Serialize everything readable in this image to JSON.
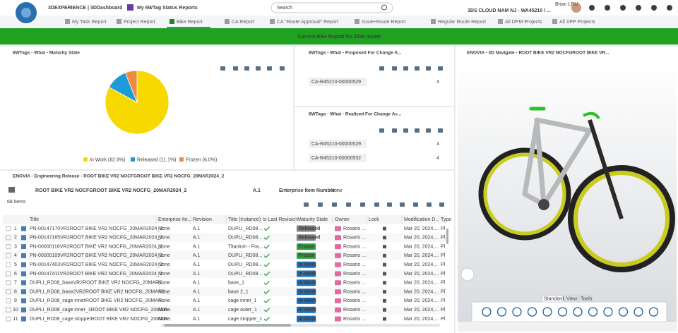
{
  "topbar": {
    "brand": "3DEXPERIENCE | 3DDashboard",
    "dashboard": "My 6WTag Status Reports",
    "search": "Search",
    "user": "Brian LRU",
    "tenant": "3DS CLOUD NAM NJ - WA45210 / ..."
  },
  "tabs": [
    "My Task Report",
    "Project Report",
    "Bike Report",
    "CA Report",
    "CA \"Route Approval\" Report",
    "Issue+Route Report",
    "Regular Route Report",
    "All DPM Projects",
    "All XPP Projects"
  ],
  "active_tab": 2,
  "banner": "Current Bike Report for 2026 model",
  "maturity_widget": {
    "title": "6WTags - What - Maturity State",
    "chart_data": {
      "type": "pie",
      "categories": [
        "In Work",
        "Released",
        "Frozen"
      ],
      "values": [
        82.9,
        11.1,
        6.0
      ],
      "legend_labels": [
        "In Work (82.9%)",
        "Released (11.1%)",
        "Frozen (6.0%)"
      ],
      "colors": [
        "#f7d900",
        "#1d9bd8",
        "#f08a3c"
      ]
    }
  },
  "proposed_widget": {
    "title": "6WTags - What - Proposed For Change A...",
    "items": [
      {
        "name": "CA-R45210-00000529",
        "count": 4
      }
    ]
  },
  "realized_widget": {
    "title": "6WTags - What - Realized For Change Ac...",
    "items": [
      {
        "name": "CA-R45210-00000529",
        "count": 4
      },
      {
        "name": "CA-R45210-00000532",
        "count": 4
      }
    ]
  },
  "navigate_widget": {
    "title": "ENOVIA - 3D Navigate - ROOT BIKE VR2 NOCFGROOT BIKE VR...",
    "toolbar_tabs": [
      "Standard",
      "View",
      "Tools"
    ]
  },
  "release_widget": {
    "title": "ENOVIA - Engineering Release - ROOT BIKE VR2 NOCFGROOT BIKE VR2 NOCFG_20MAR2024_2",
    "object": "ROOT BIKE VR2 NOCFGROOT BIKE VR2 NOCFG_20MAR2024_2",
    "revision": "A.1",
    "ein_label": "Enterprise Item Number :",
    "ein": "None",
    "count": "68 items",
    "columns": [
      "Title",
      "Enterprise Ite...",
      "Revision",
      "Title (Instance)",
      "Is Last Revision",
      "Maturity State",
      "Owner",
      "Lock",
      "Modification D...",
      "Type"
    ],
    "rows": [
      [
        1,
        "PN-00147170VR2ROOT BIKE VR2 NOCFG_20MAR2024_2",
        "None",
        "A.1",
        "DUPLI_RD08...",
        "Released",
        "Rosario ...",
        "Mar 20, 2024,...",
        "Pl"
      ],
      [
        2,
        "PN-00147165VR2ROOT BIKE VR2 NOCFG_20MAR2024_2",
        "None",
        "A.1",
        "DUPLI_RD08...",
        "Released",
        "Rosario ...",
        "Mar 20, 2024,...",
        "Pl"
      ],
      [
        3,
        "PN-00000116VR2ROOT BIKE VR2 NOCFG_20MAR2024_2",
        "None",
        "A.1",
        "Titanium - Fra...",
        "Frozen",
        "Rosario ...",
        "Mar 20, 2024,...",
        "Pl"
      ],
      [
        4,
        "PN-00000109VR2ROOT BIKE VR2 NOCFG_20MAR2024_2",
        "None",
        "A.1",
        "DUPLI_RD08...",
        "Frozen",
        "Rosario ...",
        "Mar 20, 2024,...",
        "Pl"
      ],
      [
        5,
        "PN-00147403VR2ROOT BIKE VR2 NOCFG_20MAR2024_2",
        "None",
        "A.1",
        "DUPLI_RD08...",
        "In Work",
        "Rosario ...",
        "Mar 20, 2024,...",
        "Pl"
      ],
      [
        6,
        "PN-00147411VR2ROOT BIKE VR2 NOCFG_20MAR2024_2",
        "None",
        "A.1",
        "DUPLI_RD08...",
        "In Work",
        "Rosario ...",
        "Mar 20, 2024,...",
        "Pl"
      ],
      [
        7,
        "DUPLI_RD08_baseVR2ROOT BIKE VR2 NOCFG_20MAR2...",
        "None",
        "A.1",
        "base_1",
        "In Work",
        "Rosario ...",
        "Mar 20, 2024,...",
        "Pl"
      ],
      [
        8,
        "DUPLI_RD08_base2VR2ROOT BIKE VR2 NOCFG_20MAR2...",
        "None",
        "A.1",
        "base 2_1",
        "In Work",
        "Rosario ...",
        "Mar 20, 2024,...",
        "Pl"
      ],
      [
        9,
        "DUPLI_RD08_cage innerROOT BIKE VR2 NOCFG_20MAR...",
        "None",
        "A.1",
        "cage inner_1",
        "In Work",
        "Rosario ...",
        "Mar 20, 2024,...",
        "Pl"
      ],
      [
        10,
        "DUPLI_RD08_cage inner_1ROOT BIKE VR2 NOCFG_20MAR...",
        "None",
        "A.1",
        "cage outer_1",
        "In Work",
        "Rosario ...",
        "Mar 20, 2024,...",
        "Pl"
      ],
      [
        11,
        "DUPLI_RD08_cage stopperROOT BIKE VR2 NOCFG_20MAR...",
        "None",
        "A.1",
        "cage stopper_1",
        "In Work",
        "Rosario ...",
        "Mar 20, 2024,...",
        "Pl"
      ]
    ]
  }
}
